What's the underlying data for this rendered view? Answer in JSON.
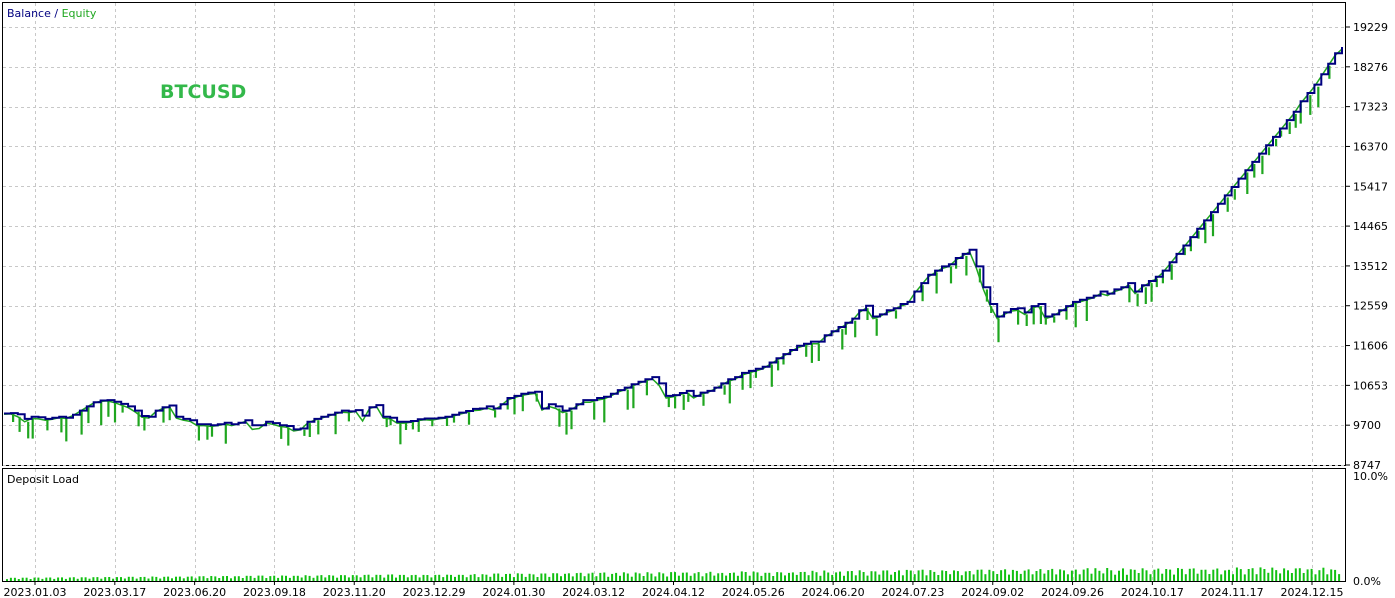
{
  "legend": {
    "balance_label": "Balance",
    "separator": " / ",
    "equity_label": "Equity"
  },
  "symbol": "BTCUSD",
  "colors": {
    "balance": "#000080",
    "equity": "#1fa61f",
    "symbol": "#33b84a",
    "grid": "#c8c8c8",
    "frame": "#000000",
    "deposit_bar": "#11c011"
  },
  "chart_data": [
    {
      "type": "line",
      "title": "",
      "legend_position": "top-left",
      "grid": true,
      "ylim": [
        8747,
        19700
      ],
      "y_ticks": [
        "19229",
        "18276",
        "17323",
        "16370",
        "15417",
        "14465",
        "13512",
        "12559",
        "11606",
        "10653",
        "9700",
        "8747"
      ],
      "x_ticks": [
        "2023.01.03",
        "2023.03.17",
        "2023.06.20",
        "2023.09.18",
        "2023.11.20",
        "2023.12.29",
        "2024.01.30",
        "2024.03.12",
        "2024.04.12",
        "2024.05.26",
        "2024.06.20",
        "2024.07.23",
        "2024.09.02",
        "2024.09.26",
        "2024.10.17",
        "2024.11.17",
        "2024.12.15"
      ],
      "series": [
        {
          "name": "Balance",
          "values": [
            9980,
            9990,
            9960,
            9850,
            9900,
            9890,
            9850,
            9880,
            9900,
            9880,
            9950,
            10050,
            10150,
            10250,
            10290,
            10300,
            10260,
            10210,
            10150,
            10050,
            9920,
            9900,
            10050,
            10130,
            10170,
            9900,
            9850,
            9820,
            9720,
            9720,
            9700,
            9720,
            9760,
            9720,
            9760,
            9820,
            9700,
            9700,
            9780,
            9750,
            9700,
            9680,
            9600,
            9620,
            9780,
            9850,
            9900,
            9950,
            10000,
            10050,
            10030,
            10060,
            9930,
            10130,
            10180,
            9900,
            9880,
            9780,
            9780,
            9800,
            9840,
            9860,
            9860,
            9880,
            9900,
            9950,
            10000,
            10040,
            10090,
            10100,
            10150,
            10100,
            10200,
            10350,
            10400,
            10450,
            10480,
            10500,
            10100,
            10200,
            10150,
            10050,
            10100,
            10200,
            10300,
            10300,
            10350,
            10380,
            10450,
            10540,
            10600,
            10680,
            10740,
            10800,
            10850,
            10700,
            10400,
            10420,
            10470,
            10520,
            10400,
            10480,
            10520,
            10600,
            10700,
            10800,
            10850,
            10950,
            11000,
            11050,
            11100,
            11200,
            11300,
            11400,
            11500,
            11600,
            11650,
            11700,
            11700,
            11850,
            11950,
            12050,
            12150,
            12250,
            12450,
            12560,
            12300,
            12350,
            12450,
            12500,
            12600,
            12650,
            12900,
            13100,
            13300,
            13400,
            13500,
            13550,
            13700,
            13800,
            13900,
            13500,
            13000,
            12600,
            12300,
            12400,
            12480,
            12500,
            12400,
            12550,
            12600,
            12300,
            12350,
            12450,
            12550,
            12650,
            12700,
            12750,
            12800,
            12900,
            12850,
            12950,
            13000,
            13100,
            12900,
            13050,
            13150,
            13250,
            13400,
            13600,
            13800,
            14000,
            14200,
            14400,
            14600,
            14800,
            15000,
            15200,
            15400,
            15600,
            15800,
            16000,
            16200,
            16400,
            16600,
            16800,
            17000,
            17200,
            17450,
            17650,
            17850,
            18100,
            18350,
            18600,
            18750
          ]
        },
        {
          "name": "Equity",
          "values": [
            9960,
            9970,
            9900,
            9780,
            9860,
            9850,
            9820,
            9840,
            9880,
            9860,
            9930,
            10030,
            10130,
            10230,
            10270,
            10280,
            10240,
            10180,
            10120,
            10020,
            9890,
            9870,
            10020,
            10100,
            10140,
            9870,
            9820,
            9790,
            9690,
            9690,
            9670,
            9690,
            9730,
            9690,
            9730,
            9790,
            9600,
            9620,
            9750,
            9720,
            9670,
            9650,
            9560,
            9590,
            9750,
            9820,
            9870,
            9920,
            9970,
            10010,
            10000,
            10030,
            9800,
            10100,
            10150,
            9870,
            9850,
            9750,
            9750,
            9770,
            9810,
            9830,
            9820,
            9850,
            9870,
            9910,
            9960,
            10000,
            10050,
            10060,
            10110,
            10060,
            10160,
            10300,
            10360,
            10410,
            10440,
            10460,
            10060,
            10150,
            10100,
            10000,
            10050,
            10150,
            10250,
            10250,
            10300,
            10330,
            10400,
            10490,
            10550,
            10630,
            10700,
            10760,
            10810,
            10650,
            10350,
            10380,
            10430,
            10480,
            10350,
            10440,
            10480,
            10560,
            10650,
            10750,
            10800,
            10900,
            10950,
            11000,
            11050,
            11150,
            11250,
            11350,
            11450,
            11550,
            11600,
            11650,
            11650,
            11800,
            11900,
            12000,
            12100,
            12200,
            12400,
            12500,
            12250,
            12300,
            12400,
            12450,
            12550,
            12600,
            12850,
            13050,
            13250,
            13350,
            13450,
            13500,
            13650,
            13750,
            13850,
            13450,
            12950,
            12550,
            12250,
            12350,
            12430,
            12450,
            12350,
            12500,
            12550,
            12250,
            12300,
            12400,
            12500,
            12600,
            12650,
            12700,
            12750,
            12850,
            12800,
            12900,
            12950,
            13050,
            12850,
            13000,
            13100,
            13200,
            13350,
            13550,
            13750,
            13950,
            14150,
            14350,
            14550,
            14750,
            14950,
            15150,
            15350,
            15550,
            15750,
            15950,
            16150,
            16350,
            16550,
            16750,
            16950,
            17150,
            17400,
            17600,
            17800,
            18050,
            18300,
            18550,
            18700
          ]
        }
      ]
    },
    {
      "type": "bar",
      "title": "Deposit Load",
      "ylim": [
        0,
        10
      ],
      "y_ticks": [
        "10.0%",
        "0.0%"
      ],
      "bars": 340,
      "value_range_percent": [
        0.3,
        1.3
      ]
    }
  ]
}
